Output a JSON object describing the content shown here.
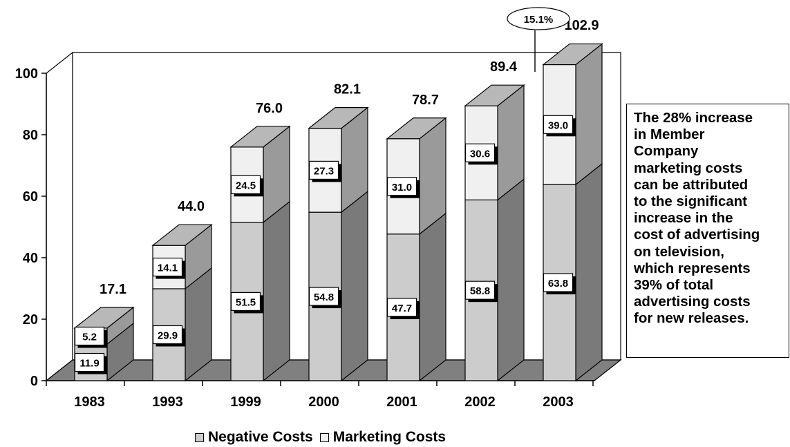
{
  "chart_data": {
    "type": "bar",
    "stacked": true,
    "three_d": true,
    "categories": [
      "1983",
      "1993",
      "1999",
      "2000",
      "2001",
      "2002",
      "2003"
    ],
    "series": [
      {
        "name": "Negative Costs",
        "values": [
          11.9,
          29.9,
          51.5,
          54.8,
          47.7,
          58.8,
          63.8
        ],
        "color": "#cccccc"
      },
      {
        "name": "Marketing Costs",
        "values": [
          5.2,
          14.1,
          24.5,
          27.3,
          31.0,
          30.6,
          39.0
        ],
        "color": "#f0f0f0"
      }
    ],
    "segment_labels": {
      "Negative Costs": [
        "11.9",
        "29.9",
        "51.5",
        "54.8",
        "47.7",
        "58.8",
        "63.8"
      ],
      "Marketing Costs": [
        "5.2",
        "14.1",
        "24.5",
        "27.3",
        "31.0",
        "30.6",
        "39.0"
      ]
    },
    "totals": [
      17.1,
      44.0,
      76.0,
      82.1,
      78.7,
      89.4,
      102.9
    ],
    "total_labels": [
      "17.1",
      "44.0",
      "76.0",
      "82.1",
      "78.7",
      "89.4",
      "102.9"
    ],
    "ylim": [
      0,
      100
    ],
    "yticks": [
      "0",
      "20",
      "40",
      "60",
      "80",
      "100"
    ],
    "xlabel": "",
    "ylabel": "",
    "annotations": [
      {
        "text": "15.1%",
        "category": "2003"
      }
    ],
    "legend": {
      "position": "bottom",
      "entries": [
        "Negative Costs",
        "Marketing Costs"
      ]
    },
    "grid": false
  },
  "note_text": "The 28% increase\nin Member\nCompany\nmarketing costs\ncan be attributed\nto the significant\nincrease in the\ncost of advertising\non television,\nwhich represents\n39% of total\nadvertising costs\nfor new releases."
}
